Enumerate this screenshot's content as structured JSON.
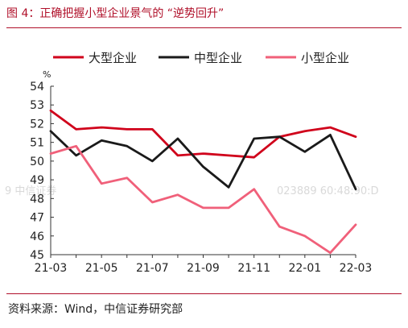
{
  "header": {
    "title": "图 4：正确把握小型企业景气的 “逆势回升”"
  },
  "footer": {
    "source": "资料来源：Wind，中信证券研究部"
  },
  "watermark": {
    "left": "9  中信证券",
    "right": "023889  60:48:90:D"
  },
  "colors": {
    "large": "#d0021b",
    "medium": "#1a1a1a",
    "small": "#f0607a",
    "accent": "#b0102a"
  },
  "chart_data": {
    "type": "line",
    "x": [
      "21-03",
      "21-04",
      "21-05",
      "21-06",
      "21-07",
      "21-08",
      "21-09",
      "21-10",
      "21-11",
      "21-12",
      "22-01",
      "22-02",
      "22-03"
    ],
    "x_tick_labels": [
      "21-03",
      "21-05",
      "21-07",
      "21-09",
      "21-11",
      "22-01",
      "22-03"
    ],
    "y_unit": "%",
    "ylim": [
      45,
      54
    ],
    "y_ticks": [
      45,
      46,
      47,
      48,
      49,
      50,
      51,
      52,
      53,
      54
    ],
    "legend_position": "top",
    "grid": false,
    "series": [
      {
        "name": "大型企业",
        "color": "#d0021b",
        "values": [
          52.7,
          51.7,
          51.8,
          51.7,
          51.7,
          50.3,
          50.4,
          50.3,
          50.2,
          51.3,
          51.6,
          51.8,
          51.3
        ]
      },
      {
        "name": "中型企业",
        "color": "#1a1a1a",
        "values": [
          51.6,
          50.3,
          51.1,
          50.8,
          50.0,
          51.2,
          49.7,
          48.6,
          51.2,
          51.3,
          50.5,
          51.4,
          48.5
        ]
      },
      {
        "name": "小型企业",
        "color": "#f0607a",
        "values": [
          50.4,
          50.8,
          48.8,
          49.1,
          47.8,
          48.2,
          47.5,
          47.5,
          48.5,
          46.5,
          46.0,
          45.1,
          46.6
        ]
      }
    ]
  }
}
